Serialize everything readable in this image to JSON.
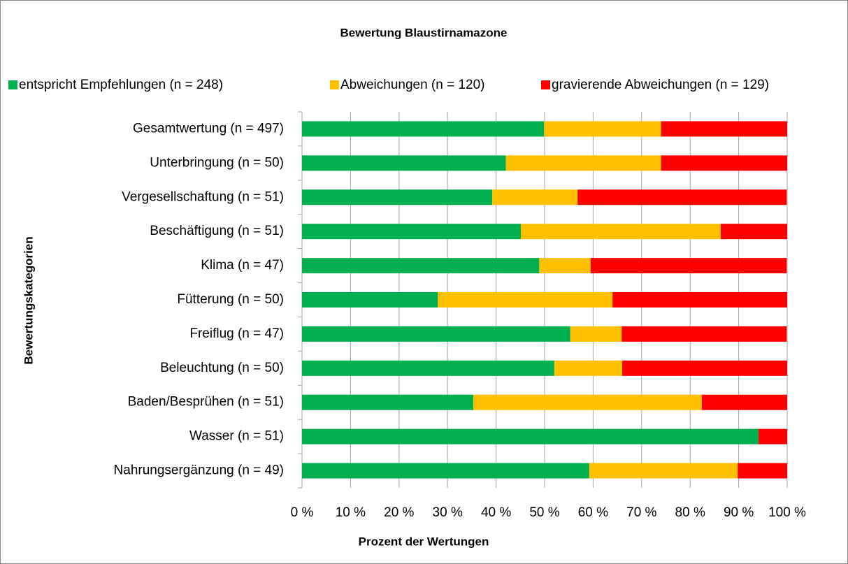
{
  "chart_data": {
    "type": "stacked-barh",
    "title": "Bewertung Blaustirnamazone",
    "x_label": "Prozent der Wertungen",
    "y_label": "Bewertungskategorien",
    "categories": [
      "Gesamtwertung (n = 497)",
      "Unterbringung (n = 50)",
      "Vergesellschaftung (n = 51)",
      "Beschäftigung (n = 51)",
      "Klima (n = 47)",
      "Fütterung (n = 50)",
      "Freiflug (n = 47)",
      "Beleuchtung (n = 50)",
      "Baden/Besprühen (n = 51)",
      "Wasser (n = 51)",
      "Nahrungsergänzung (n = 49)"
    ],
    "series": [
      {
        "name": "entspricht Empfehlungen (n = 248)",
        "color": "#00b050",
        "values": [
          49.9,
          42,
          39.2,
          45.1,
          48.9,
          28,
          55.3,
          52,
          35.3,
          94.1,
          59.2
        ]
      },
      {
        "name": "Abweichungen (n = 120)",
        "color": "#ffc000",
        "values": [
          24.1,
          32,
          17.6,
          41.2,
          10.6,
          36,
          10.6,
          14,
          47.1,
          0,
          30.6
        ]
      },
      {
        "name": "gravierende Abweichungen (n = 129)",
        "color": "#ff0000",
        "values": [
          26,
          26,
          43.1,
          13.7,
          40.4,
          36,
          34,
          34,
          17.6,
          5.9,
          10.2
        ]
      }
    ],
    "xlim": [
      0,
      100
    ],
    "xticks": [
      {
        "value": 0,
        "label": "0 %"
      },
      {
        "value": 10,
        "label": "10 %"
      },
      {
        "value": 20,
        "label": "20 %"
      },
      {
        "value": 30,
        "label": "30 %"
      },
      {
        "value": 40,
        "label": "40 %"
      },
      {
        "value": 50,
        "label": "50 %"
      },
      {
        "value": 60,
        "label": "60 %"
      },
      {
        "value": 70,
        "label": "70 %"
      },
      {
        "value": 80,
        "label": "80 %"
      },
      {
        "value": 90,
        "label": "90 %"
      },
      {
        "value": 100,
        "label": "100 %"
      }
    ],
    "grid": true,
    "legend": "top"
  }
}
